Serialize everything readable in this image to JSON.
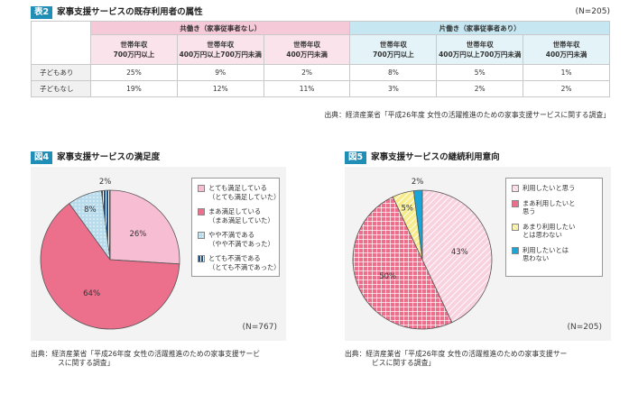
{
  "table": {
    "tag": "表2",
    "title": "家事支援サービスの既存利用者の属性",
    "n": "(N=205)",
    "group_left": "共働き（家事従事者なし）",
    "group_right": "片働き（家事従事者あり）",
    "subheaders": [
      [
        "世帯年収",
        "700万円以上"
      ],
      [
        "世帯年収",
        "400万円以上700万円未満"
      ],
      [
        "世帯年収",
        "400万円未満"
      ],
      [
        "世帯年収",
        "700万円以上"
      ],
      [
        "世帯年収",
        "400万円以上700万円未満"
      ],
      [
        "世帯年収",
        "400万円未満"
      ]
    ],
    "rows": [
      {
        "label": "子どもあり",
        "values": [
          "25%",
          "9%",
          "2%",
          "8%",
          "5%",
          "1%"
        ]
      },
      {
        "label": "子どもなし",
        "values": [
          "19%",
          "12%",
          "11%",
          "3%",
          "2%",
          "2%"
        ]
      }
    ],
    "source": "出典：経済産業省「平成26年度 女性の活躍推進のための家事支援サービスに関する調査」"
  },
  "chart_data": [
    {
      "type": "pie",
      "tag": "図4",
      "title": "家事支援サービスの満足度",
      "n": "(N=767)",
      "slices": [
        {
          "name": "とても満足している（とても満足していた）",
          "lines": [
            "とても満足している",
            "（とても満足していた）"
          ],
          "value": 26,
          "label": "26%",
          "color": "#f7bdd2",
          "pattern": "solid"
        },
        {
          "name": "まあ満足している（まあ満足していた）",
          "lines": [
            "まあ満足している",
            "（まあ満足していた）"
          ],
          "value": 64,
          "label": "64%",
          "color": "#ec6f8c",
          "pattern": "solid"
        },
        {
          "name": "やや不満である（やや不満であった）",
          "lines": [
            "やや不満である",
            "（やや不満であった）"
          ],
          "value": 8,
          "label": "8%",
          "color": "#b9dcec",
          "pattern": "dots"
        },
        {
          "name": "とても不満である（とても不満であった）",
          "lines": [
            "とても不満である",
            "（とても不満であった）"
          ],
          "value": 2,
          "label": "2%",
          "color": "#1b4f8a",
          "pattern": "vlines"
        }
      ],
      "source": [
        "出典：経済産業省「平成26年度 女性の活躍推進のための家事支援サービ",
        "スに関する調査」"
      ]
    },
    {
      "type": "pie",
      "tag": "図5",
      "title": "家事支援サービスの継続利用意向",
      "n": "(N=205)",
      "slices": [
        {
          "name": "利用したいと思う",
          "lines": [
            "利用したいと思う"
          ],
          "value": 43,
          "label": "43%",
          "color": "#f9d2e0",
          "pattern": "diag"
        },
        {
          "name": "まあ利用したいと思う",
          "lines": [
            "まあ利用したいと",
            "思う"
          ],
          "value": 50,
          "label": "50%",
          "color": "#ec6f8c",
          "pattern": "grid"
        },
        {
          "name": "あまり利用したいとは思わない",
          "lines": [
            "あまり利用したい",
            "とは思わない"
          ],
          "value": 5,
          "label": "5%",
          "color": "#f6ec8c",
          "pattern": "diag"
        },
        {
          "name": "利用したいとは思わない",
          "lines": [
            "利用したいとは",
            "思わない"
          ],
          "value": 2,
          "label": "2%",
          "color": "#1aa5d6",
          "pattern": "solid"
        }
      ],
      "source": [
        "出典：経済産業省「平成26年度 女性の活躍推進のための家事支援サー",
        "ビスに関する調査」"
      ]
    }
  ]
}
